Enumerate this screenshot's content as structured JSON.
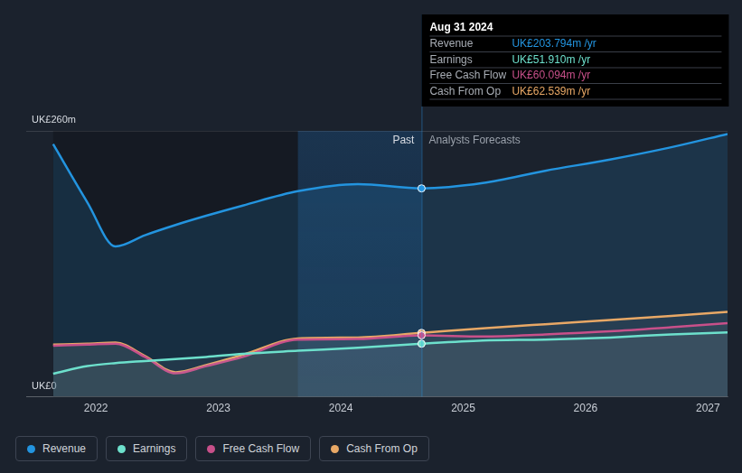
{
  "chart_data": {
    "type": "line",
    "x": [
      2021.65,
      2021.93,
      2022.16,
      2022.4,
      2022.65,
      2022.9,
      2023.2,
      2023.65,
      2024.14,
      2024.66,
      2025.16,
      2025.67,
      2026.2,
      2026.7,
      2027.16
    ],
    "series": [
      {
        "name": "Revenue",
        "color": "#2394df",
        "values": [
          247,
          190,
          147,
          158,
          168,
          177,
          187,
          201,
          208,
          203.794,
          209,
          221,
          232,
          244,
          257
        ]
      },
      {
        "name": "Earnings",
        "color": "#6de0cc",
        "values": [
          22.6,
          30,
          33,
          35,
          37,
          39,
          42,
          45,
          48,
          51.91,
          55,
          56,
          58,
          61,
          63
        ]
      },
      {
        "name": "Free Cash Flow",
        "color": "#c8508a",
        "values": [
          50,
          51,
          52,
          39,
          23,
          30,
          39,
          56,
          56.5,
          60.094,
          59,
          61,
          64,
          68,
          72
        ]
      },
      {
        "name": "Cash From Op",
        "color": "#e8a866",
        "values": [
          51,
          52,
          53,
          40,
          24,
          31,
          41,
          57,
          58,
          62.539,
          67,
          71,
          75,
          79,
          83
        ]
      }
    ],
    "xlim": [
      2021.43,
      2027.16
    ],
    "xticks": [
      2022,
      2023,
      2024,
      2025,
      2026,
      2027
    ],
    "ylim": [
      0,
      260
    ],
    "yticks": [
      {
        "value": 0,
        "label": "UK£0"
      },
      {
        "value": 260,
        "label": "UK£260m"
      }
    ],
    "grid": true,
    "legend": "bottom-left",
    "divider_x": 2024.66,
    "shaded_from": 2023.65,
    "past_label": "Past",
    "forecast_label": "Analysts Forecasts",
    "tooltip": {
      "title": "Aug 31 2024",
      "rows": [
        {
          "name": "Revenue",
          "text": "UK£203.794m /yr"
        },
        {
          "name": "Earnings",
          "text": "UK£51.910m /yr"
        },
        {
          "name": "Free Cash Flow",
          "text": "UK£60.094m /yr"
        },
        {
          "name": "Cash From Op",
          "text": "UK£62.539m /yr"
        }
      ]
    }
  }
}
